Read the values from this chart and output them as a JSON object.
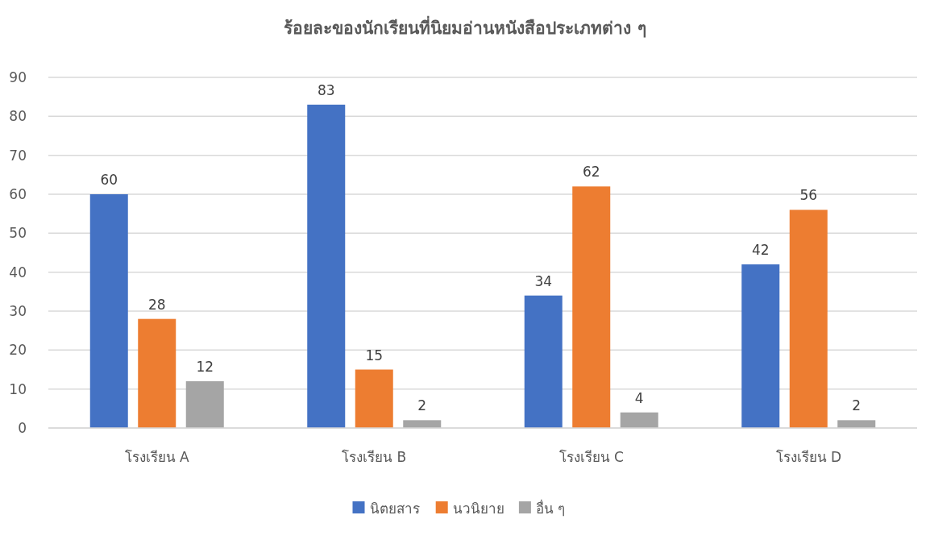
{
  "chart_data": {
    "type": "bar",
    "title": "ร้อยละของนักเรียนที่นิยมอ่านหนังสือประเภทต่าง ๆ",
    "categories": [
      "โรงเรียน A",
      "โรงเรียน B",
      "โรงเรียน C",
      "โรงเรียน D"
    ],
    "series": [
      {
        "name": "นิตยสาร",
        "color": "#4472c4",
        "values": [
          60,
          83,
          34,
          42
        ]
      },
      {
        "name": "นวนิยาย",
        "color": "#ed7d31",
        "values": [
          28,
          15,
          62,
          56
        ]
      },
      {
        "name": "อื่น ๆ",
        "color": "#a5a5a5",
        "values": [
          12,
          2,
          4,
          2
        ]
      }
    ],
    "ylim": [
      0,
      90
    ],
    "yticks": [
      0,
      10,
      20,
      30,
      40,
      50,
      60,
      70,
      80,
      90
    ],
    "grid": "y",
    "legend": "bottom",
    "data_labels": true
  }
}
